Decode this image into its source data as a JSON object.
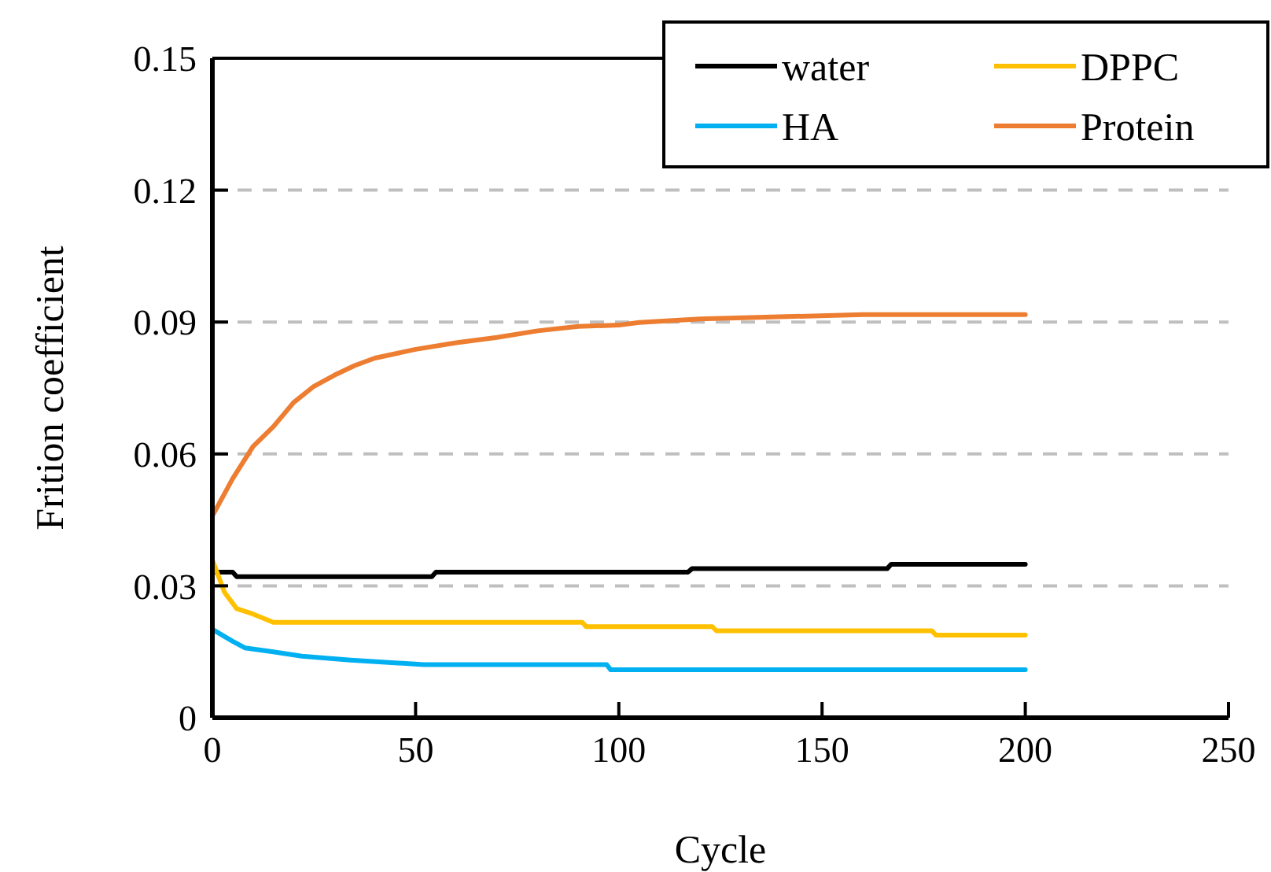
{
  "chart_data": {
    "type": "line",
    "xlabel": "Cycle",
    "ylabel": "Frition coefficient",
    "xlim": [
      0,
      250
    ],
    "xticks": [
      0,
      50,
      100,
      150,
      200,
      250
    ],
    "ylim": [
      0,
      0.15
    ],
    "yticks": [
      {
        "value": 0,
        "label": "0"
      },
      0.03,
      0.06,
      0.09,
      0.12,
      0.15
    ],
    "grid": "y",
    "legend": "top right",
    "marker": "none",
    "line_style": "solid",
    "series": [
      {
        "name": "water",
        "color": "#000000",
        "x": [
          0,
          5,
          6,
          54,
          55,
          56,
          117,
          118,
          166,
          167,
          200
        ],
        "values": [
          0.0331,
          0.0331,
          0.0321,
          0.0321,
          0.0331,
          0.0331,
          0.0331,
          0.0339,
          0.0339,
          0.0349,
          0.0349
        ]
      },
      {
        "name": "DPPC",
        "color": "#ffc000",
        "x": [
          0,
          3,
          6,
          10,
          15,
          91,
          92,
          123,
          124,
          177,
          178,
          200
        ],
        "values": [
          0.0359,
          0.0285,
          0.0248,
          0.0236,
          0.0217,
          0.0217,
          0.0207,
          0.0207,
          0.0198,
          0.0198,
          0.0188,
          0.0188
        ]
      },
      {
        "name": "HA",
        "color": "#00b0f0",
        "x": [
          0,
          5,
          8,
          15,
          22,
          34,
          52,
          97,
          98,
          200
        ],
        "values": [
          0.0201,
          0.0174,
          0.0159,
          0.015,
          0.014,
          0.0131,
          0.0121,
          0.0121,
          0.0109,
          0.0109
        ]
      },
      {
        "name": "Protein",
        "color": "#ed7d31",
        "x": [
          0,
          5,
          10,
          15,
          20,
          25,
          30,
          35,
          40,
          50,
          60,
          70,
          80,
          90,
          100,
          105,
          120,
          160,
          200
        ],
        "values": [
          0.0459,
          0.0544,
          0.0617,
          0.0662,
          0.0717,
          0.0754,
          0.0779,
          0.0801,
          0.0818,
          0.0838,
          0.0853,
          0.0865,
          0.088,
          0.089,
          0.0893,
          0.0899,
          0.0907,
          0.0917,
          0.0917
        ]
      }
    ]
  }
}
